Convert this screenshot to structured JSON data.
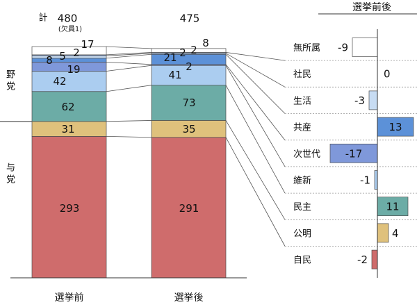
{
  "chart_data": {
    "type": "bar",
    "stacked": true,
    "categories": [
      "選挙前",
      "選挙後"
    ],
    "total_label": "計",
    "totals": [
      480,
      475
    ],
    "vacancy_note": "(欠員1)",
    "group_labels": {
      "opposition": "野党",
      "ruling": "与党"
    },
    "change_title": "選挙前後",
    "series": [
      {
        "name": "無所属",
        "values": [
          17,
          8
        ],
        "change": -9,
        "color": "#ffffff"
      },
      {
        "name": "社民",
        "values": [
          2,
          2
        ],
        "change": 0,
        "color": "#93b4e6"
      },
      {
        "name": "生活",
        "values": [
          5,
          2
        ],
        "change": -3,
        "color": "#c7dcf3"
      },
      {
        "name": "共産",
        "values": [
          8,
          21
        ],
        "change": 13,
        "color": "#5c91d8"
      },
      {
        "name": "次世代",
        "values": [
          19,
          2
        ],
        "change": -17,
        "color": "#7f98da"
      },
      {
        "name": "維新",
        "values": [
          42,
          41
        ],
        "change": -1,
        "color": "#abcdf0"
      },
      {
        "name": "民主",
        "values": [
          62,
          73
        ],
        "change": 11,
        "color": "#6caca6"
      },
      {
        "name": "公明",
        "values": [
          31,
          35
        ],
        "change": 4,
        "color": "#dfc17c"
      },
      {
        "name": "自民",
        "values": [
          293,
          291
        ],
        "change": -2,
        "color": "#cf6c6c"
      }
    ]
  }
}
